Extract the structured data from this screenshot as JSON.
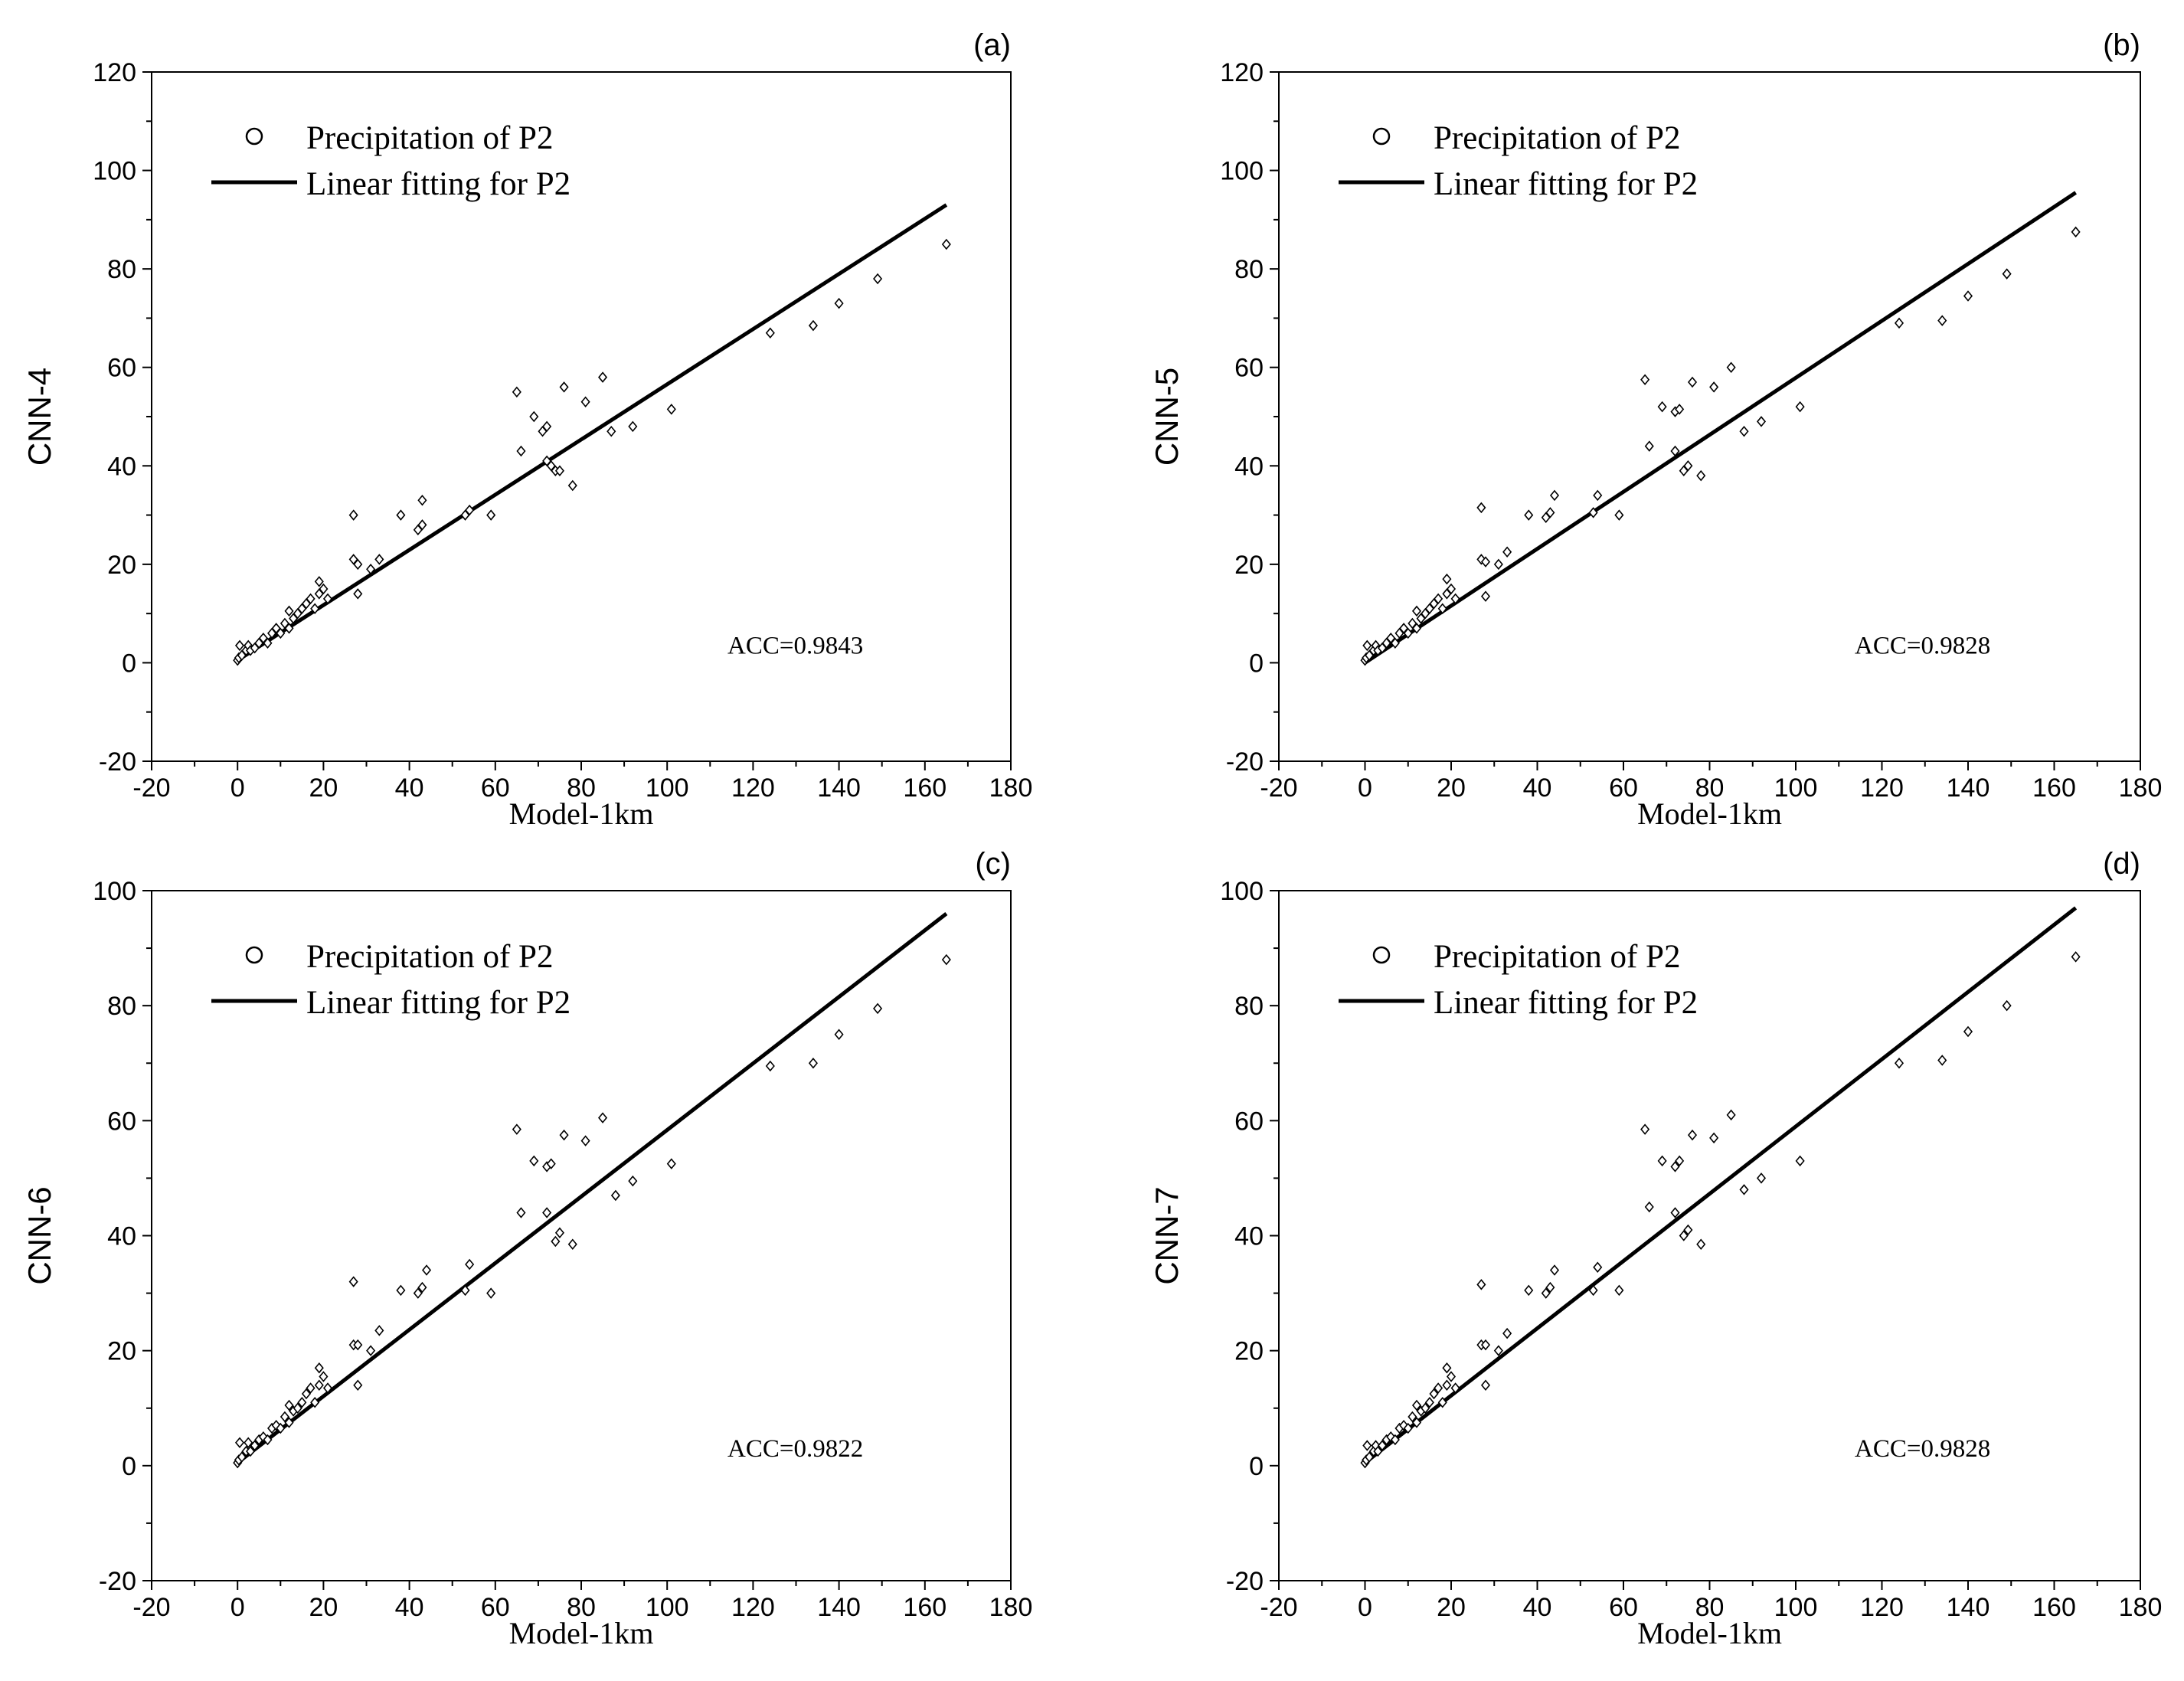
{
  "chart_data": [
    {
      "panel_label": "(a)",
      "type": "scatter",
      "xlabel": "Model-1km",
      "ylabel": "CNN-4",
      "xlim": [
        -20,
        180
      ],
      "ylim": [
        -20,
        120
      ],
      "xticks": [
        "-20",
        "0",
        "20",
        "40",
        "60",
        "80",
        "100",
        "120",
        "140",
        "160",
        "180"
      ],
      "yticks": [
        "-20",
        "0",
        "20",
        "40",
        "60",
        "80",
        "100",
        "120"
      ],
      "legend": {
        "scatter": "Precipitation of P2",
        "line": "Linear fitting for P2"
      },
      "annotation": "ACC=0.9843",
      "fit_line": {
        "x0": 0,
        "y0": 0.5,
        "x1": 165,
        "y1": 93
      },
      "points": [
        [
          0,
          0.5
        ],
        [
          0.3,
          1
        ],
        [
          0.5,
          3.5
        ],
        [
          1,
          1.5
        ],
        [
          2,
          2.5
        ],
        [
          2.5,
          3.5
        ],
        [
          3,
          2.5
        ],
        [
          4,
          3
        ],
        [
          5,
          4
        ],
        [
          6,
          5
        ],
        [
          7,
          4
        ],
        [
          8,
          6
        ],
        [
          9,
          7
        ],
        [
          10,
          6
        ],
        [
          11,
          8
        ],
        [
          12,
          7
        ],
        [
          13,
          9
        ],
        [
          14,
          10
        ],
        [
          12,
          10.5
        ],
        [
          15,
          11
        ],
        [
          16,
          12
        ],
        [
          17,
          13
        ],
        [
          18,
          11
        ],
        [
          19,
          14
        ],
        [
          20,
          15
        ],
        [
          19,
          16.5
        ],
        [
          21,
          13
        ],
        [
          27,
          30
        ],
        [
          27,
          21
        ],
        [
          28,
          20
        ],
        [
          28,
          14
        ],
        [
          31,
          19
        ],
        [
          33,
          21
        ],
        [
          38,
          30
        ],
        [
          42,
          27
        ],
        [
          43,
          28
        ],
        [
          43,
          33
        ],
        [
          53,
          30
        ],
        [
          54,
          31
        ],
        [
          59,
          30
        ],
        [
          65,
          55
        ],
        [
          66,
          43
        ],
        [
          69,
          50
        ],
        [
          71,
          47
        ],
        [
          72,
          41
        ],
        [
          72,
          48
        ],
        [
          73,
          40
        ],
        [
          74,
          39
        ],
        [
          75,
          39
        ],
        [
          76,
          56
        ],
        [
          78,
          36
        ],
        [
          81,
          53
        ],
        [
          85,
          58
        ],
        [
          87,
          47
        ],
        [
          92,
          48
        ],
        [
          101,
          51.5
        ],
        [
          124,
          67
        ],
        [
          134,
          68.5
        ],
        [
          140,
          73
        ],
        [
          149,
          78
        ],
        [
          165,
          85
        ]
      ]
    },
    {
      "panel_label": "(b)",
      "type": "scatter",
      "xlabel": "Model-1km",
      "ylabel": "CNN-5",
      "xlim": [
        -20,
        180
      ],
      "ylim": [
        -20,
        120
      ],
      "xticks": [
        "-20",
        "0",
        "20",
        "40",
        "60",
        "80",
        "100",
        "120",
        "140",
        "160",
        "180"
      ],
      "yticks": [
        "-20",
        "0",
        "20",
        "40",
        "60",
        "80",
        "100",
        "120"
      ],
      "legend": {
        "scatter": "Precipitation of P2",
        "line": "Linear fitting for P2"
      },
      "annotation": "ACC=0.9828",
      "fit_line": {
        "x0": 0,
        "y0": 0,
        "x1": 165,
        "y1": 95.5
      },
      "points": [
        [
          0,
          0.5
        ],
        [
          0.3,
          1
        ],
        [
          0.5,
          3.5
        ],
        [
          1,
          1.5
        ],
        [
          2,
          2.5
        ],
        [
          2.5,
          3.5
        ],
        [
          3,
          2.5
        ],
        [
          4,
          3
        ],
        [
          5,
          4
        ],
        [
          6,
          5
        ],
        [
          7,
          4
        ],
        [
          8,
          6
        ],
        [
          9,
          7
        ],
        [
          10,
          6
        ],
        [
          11,
          8
        ],
        [
          12,
          7
        ],
        [
          13,
          9
        ],
        [
          14,
          10
        ],
        [
          12,
          10.5
        ],
        [
          15,
          11
        ],
        [
          16,
          12
        ],
        [
          17,
          13
        ],
        [
          18,
          11
        ],
        [
          19,
          14
        ],
        [
          20,
          15
        ],
        [
          19,
          17
        ],
        [
          21,
          13
        ],
        [
          27,
          31.5
        ],
        [
          27,
          21
        ],
        [
          28,
          20.5
        ],
        [
          28,
          13.5
        ],
        [
          31,
          20
        ],
        [
          33,
          22.5
        ],
        [
          38,
          30
        ],
        [
          42,
          29.5
        ],
        [
          43,
          30.5
        ],
        [
          44,
          34
        ],
        [
          53,
          30.5
        ],
        [
          54,
          34
        ],
        [
          59,
          30
        ],
        [
          65,
          57.5
        ],
        [
          66,
          44
        ],
        [
          69,
          52
        ],
        [
          72,
          51
        ],
        [
          72,
          43
        ],
        [
          73,
          51.5
        ],
        [
          74,
          39
        ],
        [
          75,
          40
        ],
        [
          76,
          57
        ],
        [
          78,
          38
        ],
        [
          81,
          56
        ],
        [
          85,
          60
        ],
        [
          88,
          47
        ],
        [
          92,
          49
        ],
        [
          101,
          52
        ],
        [
          124,
          69
        ],
        [
          134,
          69.5
        ],
        [
          140,
          74.5
        ],
        [
          149,
          79
        ],
        [
          165,
          87.5
        ]
      ]
    },
    {
      "panel_label": "(c)",
      "type": "scatter",
      "xlabel": "Model-1km",
      "ylabel": "CNN-6",
      "xlim": [
        -20,
        180
      ],
      "ylim": [
        -20,
        100
      ],
      "xticks": [
        "-20",
        "0",
        "20",
        "40",
        "60",
        "80",
        "100",
        "120",
        "140",
        "160",
        "180"
      ],
      "yticks": [
        "-20",
        "0",
        "20",
        "40",
        "60",
        "80",
        "100"
      ],
      "legend": {
        "scatter": "Precipitation of P2",
        "line": "Linear fitting for P2"
      },
      "annotation": "ACC=0.9822",
      "fit_line": {
        "x0": 0,
        "y0": 0.5,
        "x1": 165,
        "y1": 96
      },
      "points": [
        [
          0,
          0.5
        ],
        [
          0.3,
          1
        ],
        [
          0.5,
          4
        ],
        [
          1,
          1.5
        ],
        [
          2,
          2.5
        ],
        [
          2.5,
          4
        ],
        [
          3,
          2.5
        ],
        [
          4,
          3.5
        ],
        [
          5,
          4.5
        ],
        [
          6,
          5
        ],
        [
          7,
          4.5
        ],
        [
          8,
          6.5
        ],
        [
          9,
          7
        ],
        [
          10,
          6.5
        ],
        [
          11,
          8.5
        ],
        [
          12,
          7.5
        ],
        [
          13,
          9.5
        ],
        [
          14,
          10
        ],
        [
          12,
          10.5
        ],
        [
          15,
          11
        ],
        [
          16,
          12.5
        ],
        [
          17,
          13.5
        ],
        [
          18,
          11
        ],
        [
          19,
          14
        ],
        [
          20,
          15.5
        ],
        [
          19,
          17
        ],
        [
          21,
          13.5
        ],
        [
          27,
          32
        ],
        [
          27,
          21
        ],
        [
          28,
          21
        ],
        [
          28,
          14
        ],
        [
          31,
          20
        ],
        [
          33,
          23.5
        ],
        [
          38,
          30.5
        ],
        [
          42,
          30
        ],
        [
          43,
          31
        ],
        [
          44,
          34
        ],
        [
          53,
          30.5
        ],
        [
          54,
          35
        ],
        [
          59,
          30
        ],
        [
          65,
          58.5
        ],
        [
          66,
          44
        ],
        [
          69,
          53
        ],
        [
          72,
          52
        ],
        [
          72,
          44
        ],
        [
          73,
          52.5
        ],
        [
          74,
          39
        ],
        [
          75,
          40.5
        ],
        [
          76,
          57.5
        ],
        [
          78,
          38.5
        ],
        [
          81,
          56.5
        ],
        [
          85,
          60.5
        ],
        [
          88,
          47
        ],
        [
          92,
          49.5
        ],
        [
          101,
          52.5
        ],
        [
          124,
          69.5
        ],
        [
          134,
          70
        ],
        [
          140,
          75
        ],
        [
          149,
          79.5
        ],
        [
          165,
          88
        ]
      ]
    },
    {
      "panel_label": "(d)",
      "type": "scatter",
      "xlabel": "Model-1km",
      "ylabel": "CNN-7",
      "xlim": [
        -20,
        180
      ],
      "ylim": [
        -20,
        100
      ],
      "xticks": [
        "-20",
        "0",
        "20",
        "40",
        "60",
        "80",
        "100",
        "120",
        "140",
        "160",
        "180"
      ],
      "yticks": [
        "-20",
        "0",
        "20",
        "40",
        "60",
        "80",
        "100"
      ],
      "legend": {
        "scatter": "Precipitation of P2",
        "line": "Linear fitting for P2"
      },
      "annotation": "ACC=0.9828",
      "fit_line": {
        "x0": 0,
        "y0": 0.5,
        "x1": 165,
        "y1": 97
      },
      "points": [
        [
          0,
          0.5
        ],
        [
          0.3,
          1
        ],
        [
          0.5,
          3.5
        ],
        [
          1,
          1.5
        ],
        [
          2,
          2.5
        ],
        [
          2.5,
          3.5
        ],
        [
          3,
          2.5
        ],
        [
          4,
          3.5
        ],
        [
          5,
          4.5
        ],
        [
          6,
          5
        ],
        [
          7,
          4.5
        ],
        [
          8,
          6.5
        ],
        [
          9,
          7
        ],
        [
          10,
          6.5
        ],
        [
          11,
          8.5
        ],
        [
          12,
          7.5
        ],
        [
          13,
          9.5
        ],
        [
          14,
          10
        ],
        [
          12,
          10.5
        ],
        [
          15,
          11
        ],
        [
          16,
          12.5
        ],
        [
          17,
          13.5
        ],
        [
          18,
          11
        ],
        [
          19,
          14
        ],
        [
          20,
          15.5
        ],
        [
          19,
          17
        ],
        [
          21,
          13.5
        ],
        [
          27,
          31.5
        ],
        [
          27,
          21
        ],
        [
          28,
          21
        ],
        [
          28,
          14
        ],
        [
          31,
          20
        ],
        [
          33,
          23
        ],
        [
          38,
          30.5
        ],
        [
          42,
          30
        ],
        [
          43,
          31
        ],
        [
          44,
          34
        ],
        [
          53,
          30.5
        ],
        [
          54,
          34.5
        ],
        [
          59,
          30.5
        ],
        [
          65,
          58.5
        ],
        [
          66,
          45
        ],
        [
          69,
          53
        ],
        [
          72,
          52
        ],
        [
          72,
          44
        ],
        [
          73,
          53
        ],
        [
          74,
          40
        ],
        [
          75,
          41
        ],
        [
          76,
          57.5
        ],
        [
          78,
          38.5
        ],
        [
          81,
          57
        ],
        [
          85,
          61
        ],
        [
          88,
          48
        ],
        [
          92,
          50
        ],
        [
          101,
          53
        ],
        [
          124,
          70
        ],
        [
          134,
          70.5
        ],
        [
          140,
          75.5
        ],
        [
          149,
          80
        ],
        [
          165,
          88.5
        ]
      ]
    }
  ]
}
